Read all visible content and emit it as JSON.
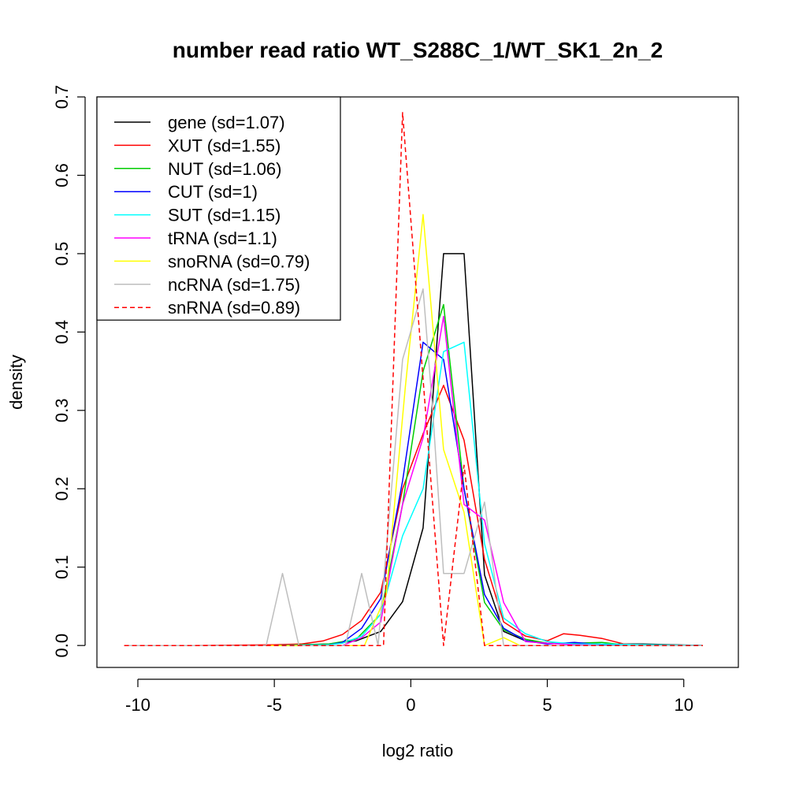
{
  "chart_data": {
    "type": "line",
    "title": "number read ratio WT_S288C_1/WT_SK1_2n_2",
    "xlabel": "log2 ratio",
    "ylabel": "density",
    "xlim": [
      -11.5,
      12
    ],
    "ylim": [
      -0.028,
      0.7
    ],
    "xticks": [
      -10,
      -5,
      0,
      5,
      10
    ],
    "yticks": [
      0.0,
      0.1,
      0.2,
      0.3,
      0.4,
      0.5,
      0.6,
      0.7
    ],
    "xtick_labels": [
      "-10",
      "-5",
      "0",
      "5",
      "10"
    ],
    "ytick_labels": [
      "0.0",
      "0.1",
      "0.2",
      "0.3",
      "0.4",
      "0.5",
      "0.6",
      "0.7"
    ],
    "legend_position": "top-left",
    "grid": false,
    "series": [
      {
        "name": "gene (sd=1.07)",
        "color": "#000000",
        "dash": "solid",
        "points": [
          [
            -10.5,
            0
          ],
          [
            -8,
            0
          ],
          [
            -5,
            0
          ],
          [
            -3,
            0.002
          ],
          [
            -2,
            0.006
          ],
          [
            -1.1,
            0.018
          ],
          [
            -0.3,
            0.056
          ],
          [
            0.45,
            0.15
          ],
          [
            1.2,
            0.5
          ],
          [
            1.95,
            0.5
          ],
          [
            2.7,
            0.09
          ],
          [
            3.4,
            0.018
          ],
          [
            4.2,
            0.006
          ],
          [
            5,
            0.003
          ],
          [
            6,
            0.003
          ],
          [
            7,
            0.002
          ],
          [
            8.5,
            0.002
          ],
          [
            10.7,
            0
          ]
        ]
      },
      {
        "name": "XUT (sd=1.55)",
        "color": "#ff0000",
        "dash": "solid",
        "points": [
          [
            -10.5,
            0
          ],
          [
            -8,
            0
          ],
          [
            -5,
            0.001
          ],
          [
            -4,
            0.002
          ],
          [
            -3.2,
            0.006
          ],
          [
            -2.5,
            0.014
          ],
          [
            -1.8,
            0.032
          ],
          [
            -1.1,
            0.068
          ],
          [
            -0.3,
            0.2
          ],
          [
            0.45,
            0.27
          ],
          [
            1.2,
            0.332
          ],
          [
            1.95,
            0.262
          ],
          [
            2.7,
            0.11
          ],
          [
            3.4,
            0.03
          ],
          [
            4.2,
            0.012
          ],
          [
            5,
            0.006
          ],
          [
            5.6,
            0.015
          ],
          [
            6.2,
            0.013
          ],
          [
            7,
            0.009
          ],
          [
            7.8,
            0.002
          ],
          [
            8.5,
            0.001
          ],
          [
            10.7,
            0
          ]
        ]
      },
      {
        "name": "NUT (sd=1.06)",
        "color": "#00cc00",
        "dash": "solid",
        "points": [
          [
            -10.5,
            0
          ],
          [
            -5,
            0
          ],
          [
            -3,
            0.002
          ],
          [
            -2,
            0.008
          ],
          [
            -1.1,
            0.04
          ],
          [
            -0.3,
            0.18
          ],
          [
            0.45,
            0.35
          ],
          [
            1.2,
            0.435
          ],
          [
            1.95,
            0.2
          ],
          [
            2.7,
            0.055
          ],
          [
            3.4,
            0.02
          ],
          [
            4.2,
            0.008
          ],
          [
            5,
            0.003
          ],
          [
            6,
            0.003
          ],
          [
            7,
            0.004
          ],
          [
            7.8,
            0.001
          ],
          [
            10.7,
            0
          ]
        ]
      },
      {
        "name": "CUT (sd=1)",
        "color": "#0000ff",
        "dash": "solid",
        "points": [
          [
            -10.5,
            0
          ],
          [
            -5,
            0
          ],
          [
            -3,
            0.001
          ],
          [
            -2.5,
            0.004
          ],
          [
            -1.8,
            0.022
          ],
          [
            -1.1,
            0.06
          ],
          [
            -0.3,
            0.21
          ],
          [
            0.45,
            0.387
          ],
          [
            1.2,
            0.365
          ],
          [
            1.95,
            0.2
          ],
          [
            2.7,
            0.065
          ],
          [
            3.4,
            0.022
          ],
          [
            4.2,
            0.006
          ],
          [
            5,
            0.002
          ],
          [
            6,
            0.004
          ],
          [
            7,
            0.001
          ],
          [
            10.7,
            0
          ]
        ]
      },
      {
        "name": "SUT (sd=1.15)",
        "color": "#00ffff",
        "dash": "solid",
        "points": [
          [
            -10.5,
            0
          ],
          [
            -5,
            0
          ],
          [
            -3,
            0.001
          ],
          [
            -2.5,
            0.003
          ],
          [
            -1.8,
            0.012
          ],
          [
            -1.1,
            0.04
          ],
          [
            -0.3,
            0.14
          ],
          [
            0.45,
            0.2
          ],
          [
            1.2,
            0.375
          ],
          [
            1.95,
            0.387
          ],
          [
            2.7,
            0.13
          ],
          [
            3.4,
            0.035
          ],
          [
            4.2,
            0.015
          ],
          [
            5,
            0.005
          ],
          [
            6,
            0.002
          ],
          [
            7,
            0.002
          ],
          [
            10.7,
            0
          ]
        ]
      },
      {
        "name": "tRNA (sd=1.1)",
        "color": "#ff00ff",
        "dash": "solid",
        "points": [
          [
            -10.5,
            0
          ],
          [
            -5,
            0
          ],
          [
            -2.5,
            0
          ],
          [
            -1.8,
            0.01
          ],
          [
            -1.1,
            0.03
          ],
          [
            -0.3,
            0.18
          ],
          [
            0.45,
            0.265
          ],
          [
            1.2,
            0.42
          ],
          [
            1.95,
            0.18
          ],
          [
            2.7,
            0.16
          ],
          [
            3.4,
            0.055
          ],
          [
            4.2,
            0.005
          ],
          [
            5,
            0.003
          ],
          [
            6,
            0.001
          ],
          [
            7,
            0
          ],
          [
            10.7,
            0
          ]
        ]
      },
      {
        "name": "snoRNA (sd=0.79)",
        "color": "#ffff00",
        "dash": "solid",
        "points": [
          [
            -10.5,
            0
          ],
          [
            -2,
            0
          ],
          [
            -1.7,
            0
          ],
          [
            -0.9,
            0.065
          ],
          [
            -0.2,
            0.33
          ],
          [
            0.45,
            0.55
          ],
          [
            1.2,
            0.25
          ],
          [
            1.95,
            0.17
          ],
          [
            2.7,
            0
          ],
          [
            3.4,
            0.01
          ],
          [
            4,
            0
          ],
          [
            10.7,
            0
          ]
        ]
      },
      {
        "name": "ncRNA (sd=1.75)",
        "color": "#bebebe",
        "dash": "solid",
        "points": [
          [
            -10.5,
            0
          ],
          [
            -5.3,
            0
          ],
          [
            -4.7,
            0.092
          ],
          [
            -4.1,
            0
          ],
          [
            -2.4,
            0
          ],
          [
            -1.8,
            0.092
          ],
          [
            -1.2,
            0
          ],
          [
            -0.3,
            0.365
          ],
          [
            0.45,
            0.455
          ],
          [
            0.8,
            0.3
          ],
          [
            1.2,
            0.092
          ],
          [
            1.95,
            0.092
          ],
          [
            2.7,
            0.183
          ],
          [
            3.4,
            0
          ],
          [
            10.7,
            0
          ]
        ]
      },
      {
        "name": "snRNA (sd=0.89)",
        "color": "#ff0000",
        "dash": "dashed",
        "points": [
          [
            -10.5,
            0
          ],
          [
            -1,
            0
          ],
          [
            -0.3,
            0.68
          ],
          [
            1.2,
            0
          ],
          [
            1.95,
            0.23
          ],
          [
            2.7,
            0
          ],
          [
            10.7,
            0
          ]
        ]
      }
    ]
  }
}
